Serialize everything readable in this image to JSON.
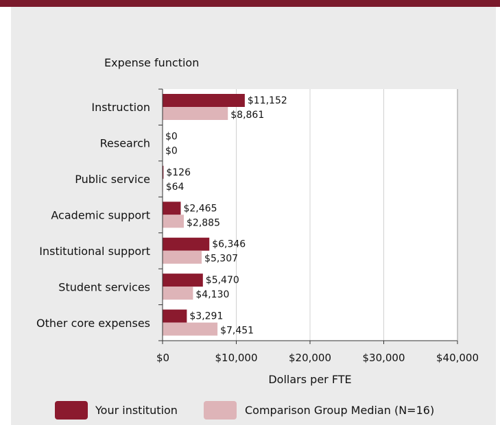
{
  "chart_data": {
    "type": "bar",
    "orientation": "horizontal",
    "category_axis_title": "Expense function",
    "xlabel": "Dollars per FTE",
    "xlim": [
      0,
      40000
    ],
    "x_ticks": [
      0,
      10000,
      20000,
      30000,
      40000
    ],
    "x_tick_labels": [
      "$0",
      "$10,000",
      "$20,000",
      "$30,000",
      "$40,000"
    ],
    "grid": true,
    "legend_position": "bottom",
    "categories": [
      "Instruction",
      "Research",
      "Public service",
      "Academic support",
      "Institutional support",
      "Student services",
      "Other core expenses"
    ],
    "series": [
      {
        "name": "Your institution",
        "color": "#8b1a2e",
        "values": [
          11152,
          0,
          126,
          2465,
          6346,
          5470,
          3291
        ],
        "labels": [
          "$11,152",
          "$0",
          "$126",
          "$2,465",
          "$6,346",
          "$5,470",
          "$3,291"
        ]
      },
      {
        "name": "Comparison Group Median (N=16)",
        "color": "#deb4b8",
        "values": [
          8861,
          0,
          64,
          2885,
          5307,
          4130,
          7451
        ],
        "labels": [
          "$8,861",
          "$0",
          "$64",
          "$2,885",
          "$5,307",
          "$4,130",
          "$7,451"
        ]
      }
    ]
  }
}
